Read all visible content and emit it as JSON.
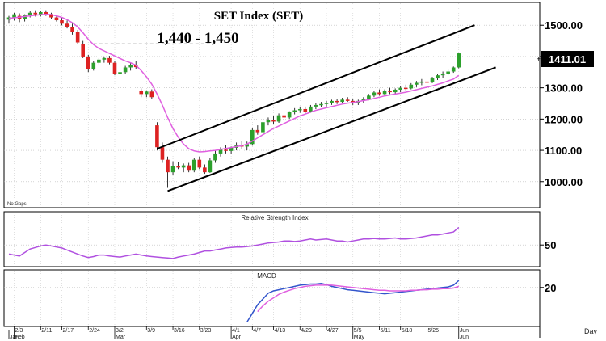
{
  "chart_data": [
    {
      "type": "candlestick",
      "title": "SET  Index  (SET)",
      "annotation": "1,440 - 1,450",
      "corner_note": "No Gaps",
      "current_value_label": "1411.01",
      "y_ticks": [
        "1500.00",
        "1400.00",
        "1300.00",
        "1200.00",
        "1100.00",
        "1000.00"
      ],
      "y_tick_values": [
        1500,
        1400,
        1300,
        1200,
        1100,
        1000
      ],
      "ylim": [
        940,
        1560
      ],
      "x_tick_labels": [
        "2/3",
        "2/11",
        "2/17",
        "2/24",
        "3/2",
        "3/9",
        "3/16",
        "3/23",
        "4/1",
        "4/7",
        "4/13",
        "4/20",
        "4/27",
        "5/5",
        "5/11",
        "5/18",
        "5/25",
        "Jun"
      ],
      "x_tick_sessions": [
        1,
        6,
        10,
        15,
        20,
        26,
        31,
        36,
        42,
        46,
        50,
        55,
        60,
        65,
        70,
        74,
        79,
        85
      ],
      "month_labels": [
        "Jan",
        "Feb",
        "Mar",
        "Apr",
        "May",
        "Jun"
      ],
      "month_sessions": [
        0,
        1,
        20,
        42,
        65,
        85
      ],
      "x_axis_unit": "Day",
      "candles": [
        [
          1518,
          1530,
          1505,
          1525
        ],
        [
          1525,
          1540,
          1515,
          1535
        ],
        [
          1530,
          1538,
          1510,
          1520
        ],
        [
          1520,
          1535,
          1512,
          1532
        ],
        [
          1532,
          1545,
          1525,
          1540
        ],
        [
          1540,
          1548,
          1528,
          1535
        ],
        [
          1535,
          1545,
          1528,
          1542
        ],
        [
          1542,
          1548,
          1530,
          1536
        ],
        [
          1536,
          1540,
          1520,
          1525
        ],
        [
          1525,
          1532,
          1512,
          1516
        ],
        [
          1516,
          1525,
          1500,
          1505
        ],
        [
          1505,
          1515,
          1490,
          1495
        ],
        [
          1495,
          1505,
          1470,
          1478
        ],
        [
          1478,
          1485,
          1440,
          1445
        ],
        [
          1440,
          1450,
          1395,
          1400
        ],
        [
          1400,
          1405,
          1350,
          1360
        ],
        [
          1360,
          1385,
          1355,
          1380
        ],
        [
          1380,
          1395,
          1375,
          1390
        ],
        [
          1390,
          1400,
          1380,
          1395
        ],
        [
          1395,
          1402,
          1375,
          1380
        ],
        [
          1380,
          1385,
          1340,
          1345
        ],
        [
          1345,
          1360,
          1335,
          1350
        ],
        [
          1350,
          1370,
          1345,
          1365
        ],
        [
          1365,
          1380,
          1355,
          1372
        ],
        [
          1372,
          1385,
          1360,
          1366
        ],
        [
          1290,
          1298,
          1270,
          1280
        ],
        [
          1280,
          1292,
          1270,
          1288
        ],
        [
          1288,
          1295,
          1265,
          1270
        ],
        [
          1180,
          1190,
          1100,
          1110
        ],
        [
          1110,
          1125,
          1060,
          1070
        ],
        [
          1070,
          1080,
          980,
          1030
        ],
        [
          1030,
          1065,
          1020,
          1050
        ],
        [
          1050,
          1062,
          1040,
          1045
        ],
        [
          1045,
          1058,
          1030,
          1052
        ],
        [
          1052,
          1060,
          1030,
          1035
        ],
        [
          1035,
          1075,
          1030,
          1070
        ],
        [
          1070,
          1080,
          1040,
          1045
        ],
        [
          1045,
          1055,
          1025,
          1030
        ],
        [
          1030,
          1075,
          1028,
          1068
        ],
        [
          1068,
          1100,
          1060,
          1090
        ],
        [
          1090,
          1110,
          1080,
          1102
        ],
        [
          1102,
          1118,
          1090,
          1098
        ],
        [
          1098,
          1112,
          1088,
          1108
        ],
        [
          1108,
          1125,
          1100,
          1118
        ],
        [
          1118,
          1130,
          1105,
          1112
        ],
        [
          1112,
          1128,
          1100,
          1120
        ],
        [
          1120,
          1170,
          1115,
          1165
        ],
        [
          1165,
          1180,
          1150,
          1158
        ],
        [
          1158,
          1195,
          1155,
          1190
        ],
        [
          1190,
          1205,
          1180,
          1198
        ],
        [
          1198,
          1210,
          1185,
          1192
        ],
        [
          1192,
          1218,
          1188,
          1212
        ],
        [
          1212,
          1220,
          1198,
          1205
        ],
        [
          1205,
          1225,
          1200,
          1222
        ],
        [
          1222,
          1235,
          1215,
          1228
        ],
        [
          1228,
          1240,
          1220,
          1232
        ],
        [
          1232,
          1240,
          1218,
          1224
        ],
        [
          1224,
          1245,
          1220,
          1240
        ],
        [
          1240,
          1252,
          1232,
          1245
        ],
        [
          1245,
          1255,
          1238,
          1248
        ],
        [
          1248,
          1258,
          1240,
          1252
        ],
        [
          1252,
          1262,
          1245,
          1258
        ],
        [
          1258,
          1265,
          1248,
          1255
        ],
        [
          1255,
          1268,
          1250,
          1262
        ],
        [
          1262,
          1270,
          1255,
          1258
        ],
        [
          1258,
          1265,
          1245,
          1250
        ],
        [
          1250,
          1262,
          1245,
          1258
        ],
        [
          1258,
          1270,
          1252,
          1265
        ],
        [
          1265,
          1280,
          1260,
          1275
        ],
        [
          1275,
          1290,
          1270,
          1285
        ],
        [
          1285,
          1295,
          1275,
          1280
        ],
        [
          1280,
          1295,
          1275,
          1290
        ],
        [
          1290,
          1300,
          1280,
          1286
        ],
        [
          1286,
          1298,
          1280,
          1294
        ],
        [
          1294,
          1305,
          1286,
          1300
        ],
        [
          1300,
          1310,
          1292,
          1298
        ],
        [
          1298,
          1315,
          1295,
          1310
        ],
        [
          1310,
          1322,
          1302,
          1316
        ],
        [
          1316,
          1328,
          1308,
          1320
        ],
        [
          1320,
          1330,
          1310,
          1318
        ],
        [
          1318,
          1335,
          1315,
          1330
        ],
        [
          1330,
          1345,
          1325,
          1340
        ],
        [
          1340,
          1352,
          1332,
          1345
        ],
        [
          1345,
          1358,
          1340,
          1352
        ],
        [
          1352,
          1368,
          1348,
          1365
        ],
        [
          1365,
          1412,
          1362,
          1410
        ]
      ],
      "ma_line": [
        1522,
        1524,
        1526,
        1528,
        1530,
        1532,
        1534,
        1535,
        1534,
        1530,
        1525,
        1518,
        1508,
        1495,
        1476,
        1455,
        1438,
        1426,
        1418,
        1410,
        1402,
        1394,
        1386,
        1380,
        1372,
        1355,
        1335,
        1312,
        1280,
        1245,
        1205,
        1170,
        1142,
        1120,
        1105,
        1098,
        1095,
        1096,
        1098,
        1100,
        1103,
        1106,
        1109,
        1112,
        1115,
        1120,
        1130,
        1140,
        1150,
        1160,
        1170,
        1178,
        1186,
        1194,
        1202,
        1210,
        1216,
        1222,
        1228,
        1232,
        1236,
        1240,
        1244,
        1248,
        1251,
        1253,
        1256,
        1259,
        1262,
        1266,
        1270,
        1274,
        1277,
        1280,
        1283,
        1286,
        1290,
        1294,
        1298,
        1302,
        1306,
        1311,
        1316,
        1322,
        1328,
        1340
      ],
      "resistance_level": 1440,
      "channel_upper": [
        [
          28,
          1105
        ],
        [
          88,
          1500
        ]
      ],
      "channel_lower": [
        [
          30,
          970
        ],
        [
          92,
          1365
        ]
      ]
    },
    {
      "type": "line",
      "title": "Relative Strength Index",
      "y_ticks": [
        "50"
      ],
      "y_tick_values": [
        50
      ],
      "ylim": [
        10,
        110
      ],
      "series": [
        {
          "values": [
            32,
            30,
            28,
            35,
            42,
            45,
            48,
            50,
            48,
            46,
            44,
            40,
            36,
            32,
            28,
            25,
            27,
            30,
            30,
            28,
            27,
            26,
            28,
            30,
            32,
            30,
            28,
            27,
            26,
            25,
            24,
            23,
            26,
            28,
            30,
            32,
            35,
            38,
            38,
            40,
            42,
            44,
            45,
            46,
            46,
            47,
            48,
            50,
            52,
            54,
            55,
            56,
            58,
            58,
            57,
            58,
            60,
            62,
            60,
            61,
            62,
            60,
            58,
            58,
            56,
            58,
            60,
            62,
            62,
            63,
            62,
            62,
            63,
            64,
            62,
            62,
            63,
            64,
            66,
            68,
            70,
            70,
            72,
            74,
            76,
            85
          ]
        }
      ]
    },
    {
      "type": "line",
      "title": "MACD",
      "y_ticks": [
        "20"
      ],
      "y_tick_values": [
        20
      ],
      "ylim": [
        -45,
        45
      ],
      "series": [
        {
          "values": [
            null,
            null,
            null,
            null,
            null,
            null,
            null,
            null,
            null,
            null,
            null,
            null,
            null,
            null,
            null,
            null,
            null,
            null,
            null,
            null,
            null,
            null,
            null,
            null,
            null,
            null,
            null,
            null,
            null,
            null,
            null,
            null,
            null,
            null,
            null,
            null,
            null,
            null,
            null,
            null,
            null,
            null,
            null,
            null,
            null,
            -40,
            -25,
            -10,
            0,
            10,
            14,
            16,
            18,
            20,
            22,
            24,
            25,
            26,
            26,
            27,
            25,
            22,
            20,
            18,
            16,
            15,
            14,
            13,
            12,
            11,
            10,
            9,
            10,
            11,
            12,
            13,
            14,
            15,
            16,
            17,
            18,
            19,
            20,
            21,
            24,
            32
          ]
        },
        {
          "values": [
            null,
            null,
            null,
            null,
            null,
            null,
            null,
            null,
            null,
            null,
            null,
            null,
            null,
            null,
            null,
            null,
            null,
            null,
            null,
            null,
            null,
            null,
            null,
            null,
            null,
            null,
            null,
            null,
            null,
            null,
            null,
            null,
            null,
            null,
            null,
            null,
            null,
            null,
            null,
            null,
            null,
            null,
            null,
            null,
            null,
            null,
            null,
            -22,
            -12,
            -4,
            2,
            8,
            12,
            15,
            18,
            20,
            22,
            23,
            24,
            24,
            24,
            24,
            23,
            22,
            21,
            20,
            19,
            18,
            17,
            16,
            15,
            15,
            14,
            14,
            14,
            14,
            15,
            15,
            16,
            16,
            17,
            17,
            18,
            18,
            19,
            22
          ]
        }
      ]
    }
  ],
  "colors": {
    "up": "#2ca02c",
    "down": "#dd2222",
    "ma": "#e060e0",
    "macd": "#3355cc",
    "signal": "#e060e0",
    "rsi": "#b050e0",
    "channel": "#000000",
    "price_label_bg": "#000000",
    "price_label_fg": "#ffffff"
  }
}
